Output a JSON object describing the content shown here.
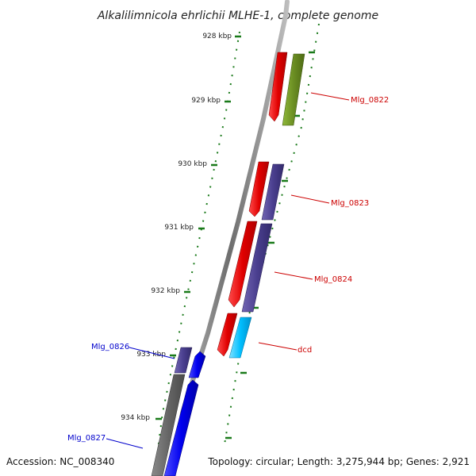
{
  "title": "Alkalilimnicola ehrlichii MLHE-1, complete genome",
  "footer": {
    "accession": "Accession: NC_008340",
    "summary": "Topology: circular; Length: 3,275,944 bp; Genes: 2,921"
  },
  "ticks": [
    "928 kbp",
    "929 kbp",
    "930 kbp",
    "931 kbp",
    "932 kbp",
    "933 kbp",
    "934 kbp"
  ],
  "genes": [
    {
      "name": "Mlg_0822",
      "color": "#cc0000"
    },
    {
      "name": "Mlg_0823",
      "color": "#cc0000"
    },
    {
      "name": "Mlg_0824",
      "color": "#cc0000"
    },
    {
      "name": "dcd",
      "color": "#cc0000"
    },
    {
      "name": "Mlg_0826",
      "color": "#0000cc"
    },
    {
      "name": "Mlg_0827",
      "color": "#0000cc"
    }
  ],
  "colors": {
    "forward_cds": "#ff0000",
    "reverse_cds": "#0000ff",
    "cog_purple": "#4a3f8f",
    "cog_olive": "#6b8e23",
    "cog_cyan": "#00bfff",
    "gc_skew_dots": "#1a7a1a",
    "backbone": "#888888"
  }
}
